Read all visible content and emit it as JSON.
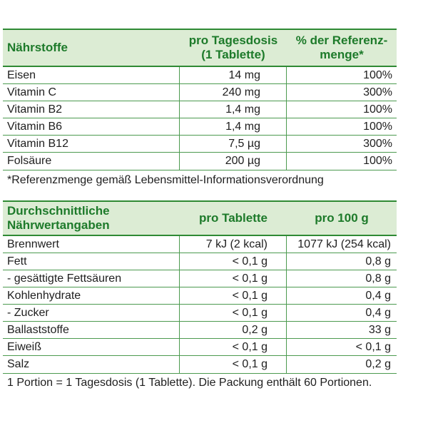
{
  "nutrients": {
    "headers": {
      "name": "Nährstoffe",
      "dose_line1": "pro Tagesdosis",
      "dose_line2": "(1 Tablette)",
      "ref_line1": "% der Referenz-",
      "ref_line2": "menge*"
    },
    "rows": [
      {
        "name": "Eisen",
        "amount": "14 mg",
        "percent": "100%"
      },
      {
        "name": "Vitamin C",
        "amount": "240 mg",
        "percent": "300%"
      },
      {
        "name": "Vitamin B2",
        "amount": "1,4 mg",
        "percent": "100%"
      },
      {
        "name": "Vitamin B6",
        "amount": "1,4 mg",
        "percent": "100%"
      },
      {
        "name": "Vitamin B12",
        "amount": "7,5 µg",
        "percent": "300%"
      },
      {
        "name": "Folsäure",
        "amount": "200 µg",
        "percent": "100%"
      }
    ],
    "footnote": "*Referenzmenge gemäß Lebensmittel-Informationsverordnung"
  },
  "nutrition": {
    "headers": {
      "name_line1": "Durchschnittliche",
      "name_line2": "Nährwertangaben",
      "per_tablet": "pro Tablette",
      "per_100g": "pro 100 g"
    },
    "rows": [
      {
        "name": "Brennwert",
        "per_tablet": "7 kJ (2 kcal)",
        "per_100g": "1077 kJ (254 kcal)"
      },
      {
        "name": "Fett",
        "per_tablet": "< 0,1 g",
        "per_100g": "0,8 g"
      },
      {
        "name": "- gesättigte Fettsäuren",
        "per_tablet": "< 0,1 g",
        "per_100g": "0,8 g"
      },
      {
        "name": "Kohlenhydrate",
        "per_tablet": "< 0,1 g",
        "per_100g": "0,4 g"
      },
      {
        "name": "- Zucker",
        "per_tablet": "< 0,1 g",
        "per_100g": "0,4 g"
      },
      {
        "name": "Ballaststoffe",
        "per_tablet": "0,2 g",
        "per_100g": "33 g"
      },
      {
        "name": "Eiweiß",
        "per_tablet": "< 0,1 g",
        "per_100g": "< 0,1 g"
      },
      {
        "name": "Salz",
        "per_tablet": "< 0,1 g",
        "per_100g": "0,2 g"
      }
    ],
    "footnote": "1 Portion = 1 Tagesdosis (1 Tablette). Die Packung enthält 60 Portionen."
  },
  "colors": {
    "header_bg": "#dcecd4",
    "header_text": "#1d7a2a",
    "rule": "#4c9a4f"
  }
}
